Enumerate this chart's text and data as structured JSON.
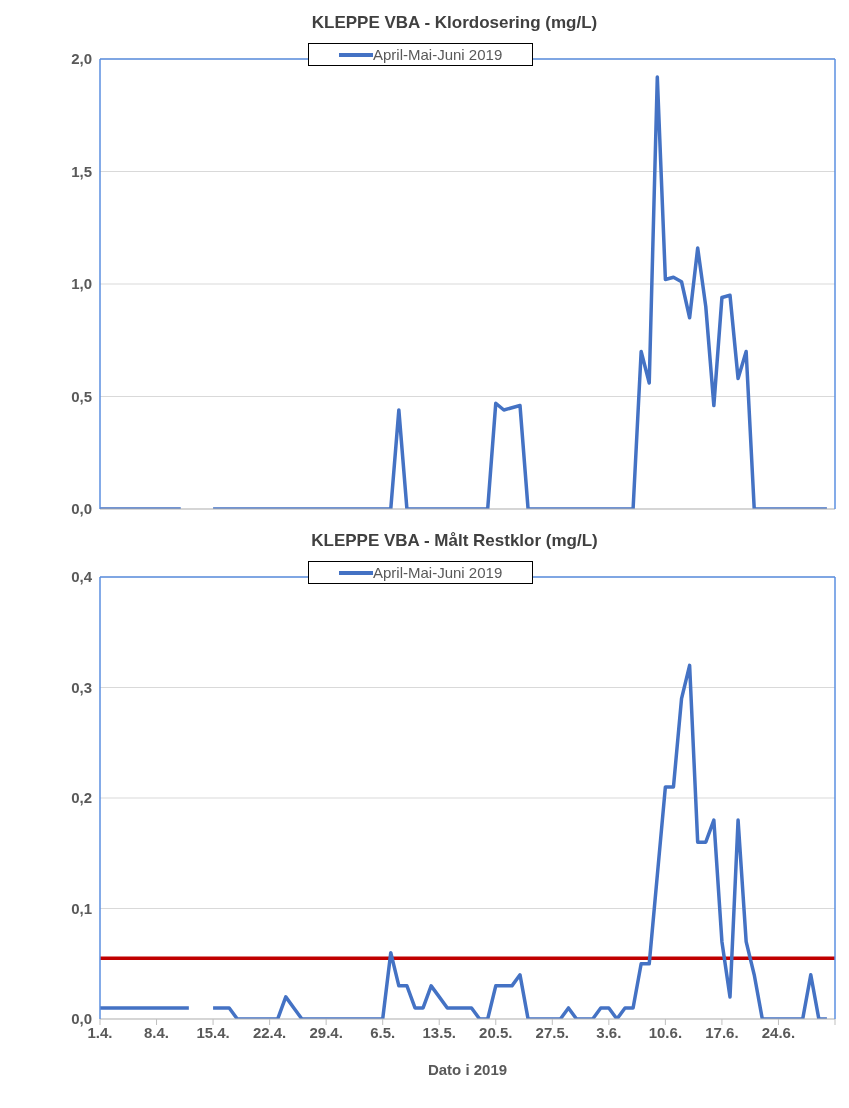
{
  "chart_data": [
    {
      "type": "line",
      "title": "KLEPPE VBA - Klordosering (mg/L)",
      "x": [
        "2019-04-01",
        "2019-04-02",
        "2019-04-03",
        "2019-04-04",
        "2019-04-05",
        "2019-04-06",
        "2019-04-07",
        "2019-04-08",
        "2019-04-09",
        "2019-04-10",
        "2019-04-11",
        "2019-04-12",
        "2019-04-13",
        "2019-04-14",
        "2019-04-15",
        "2019-04-16",
        "2019-04-17",
        "2019-04-18",
        "2019-04-19",
        "2019-04-20",
        "2019-04-21",
        "2019-04-22",
        "2019-04-23",
        "2019-04-24",
        "2019-04-25",
        "2019-04-26",
        "2019-04-27",
        "2019-04-28",
        "2019-04-29",
        "2019-04-30",
        "2019-05-01",
        "2019-05-02",
        "2019-05-03",
        "2019-05-04",
        "2019-05-05",
        "2019-05-06",
        "2019-05-07",
        "2019-05-08",
        "2019-05-09",
        "2019-05-10",
        "2019-05-11",
        "2019-05-12",
        "2019-05-13",
        "2019-05-14",
        "2019-05-15",
        "2019-05-16",
        "2019-05-17",
        "2019-05-18",
        "2019-05-19",
        "2019-05-20",
        "2019-05-21",
        "2019-05-22",
        "2019-05-23",
        "2019-05-24",
        "2019-05-25",
        "2019-05-26",
        "2019-05-27",
        "2019-05-28",
        "2019-05-29",
        "2019-05-30",
        "2019-05-31",
        "2019-06-01",
        "2019-06-02",
        "2019-06-03",
        "2019-06-04",
        "2019-06-05",
        "2019-06-06",
        "2019-06-07",
        "2019-06-08",
        "2019-06-09",
        "2019-06-10",
        "2019-06-11",
        "2019-06-12",
        "2019-06-13",
        "2019-06-14",
        "2019-06-15",
        "2019-06-16",
        "2019-06-17",
        "2019-06-18",
        "2019-06-19",
        "2019-06-20",
        "2019-06-21",
        "2019-06-22",
        "2019-06-23",
        "2019-06-24",
        "2019-06-25",
        "2019-06-26",
        "2019-06-27",
        "2019-06-28",
        "2019-06-29",
        "2019-06-30"
      ],
      "series": [
        {
          "name": "April-Mai-Juni 2019",
          "color": "#4472c4",
          "values": [
            0,
            0,
            0,
            0,
            0,
            0,
            0,
            0,
            0,
            0,
            0,
            null,
            null,
            null,
            0,
            0,
            0,
            0,
            0,
            0,
            0,
            0,
            0,
            0,
            0,
            0,
            0,
            0,
            0,
            0,
            0,
            0,
            0,
            0,
            0,
            0,
            0,
            0.44,
            0,
            0,
            0,
            0,
            0,
            0,
            0,
            0,
            0,
            0,
            0,
            0.47,
            0.44,
            0.45,
            0.46,
            0,
            0,
            0,
            0,
            0,
            0,
            0,
            0,
            0,
            0,
            0,
            0,
            0,
            0,
            0.7,
            0.56,
            1.92,
            1.02,
            1.03,
            1.01,
            0.85,
            1.16,
            0.9,
            0.46,
            0.94,
            0.95,
            0.58,
            0.7,
            0,
            0,
            0,
            0,
            0,
            0,
            0,
            0,
            0,
            0
          ]
        }
      ],
      "xlim": [
        "2019-04-01",
        "2019-07-01"
      ],
      "xticks": [
        {
          "value": "2019-04-01",
          "label": null
        },
        {
          "value": "2019-04-08",
          "label": null
        },
        {
          "value": "2019-04-15",
          "label": null
        },
        {
          "value": "2019-04-22",
          "label": null
        },
        {
          "value": "2019-04-29",
          "label": null
        },
        {
          "value": "2019-05-06",
          "label": null
        },
        {
          "value": "2019-05-13",
          "label": null
        },
        {
          "value": "2019-05-20",
          "label": null
        },
        {
          "value": "2019-05-27",
          "label": null
        },
        {
          "value": "2019-06-03",
          "label": null
        },
        {
          "value": "2019-06-10",
          "label": null
        },
        {
          "value": "2019-06-17",
          "label": null
        },
        {
          "value": "2019-06-24",
          "label": null
        },
        {
          "value": "2019-07-01",
          "label": null
        }
      ],
      "ylim": [
        0,
        2
      ],
      "yticks": [
        {
          "value": 0,
          "label": "0,0"
        },
        {
          "value": 0.5,
          "label": "0,5"
        },
        {
          "value": 1,
          "label": "1,0"
        },
        {
          "value": 1.5,
          "label": "1,5"
        },
        {
          "value": 2,
          "label": "2,0"
        }
      ],
      "tick_labels": "y",
      "grid": "y",
      "legend": "top",
      "marker": "none",
      "line_style": "solid"
    },
    {
      "type": "line",
      "title": "KLEPPE VBA - Målt Restklor (mg/L)",
      "xlabel": "Dato i 2019",
      "x": [
        "2019-04-01",
        "2019-04-02",
        "2019-04-03",
        "2019-04-04",
        "2019-04-05",
        "2019-04-06",
        "2019-04-07",
        "2019-04-08",
        "2019-04-09",
        "2019-04-10",
        "2019-04-11",
        "2019-04-12",
        "2019-04-13",
        "2019-04-14",
        "2019-04-15",
        "2019-04-16",
        "2019-04-17",
        "2019-04-18",
        "2019-04-19",
        "2019-04-20",
        "2019-04-21",
        "2019-04-22",
        "2019-04-23",
        "2019-04-24",
        "2019-04-25",
        "2019-04-26",
        "2019-04-27",
        "2019-04-28",
        "2019-04-29",
        "2019-04-30",
        "2019-05-01",
        "2019-05-02",
        "2019-05-03",
        "2019-05-04",
        "2019-05-05",
        "2019-05-06",
        "2019-05-07",
        "2019-05-08",
        "2019-05-09",
        "2019-05-10",
        "2019-05-11",
        "2019-05-12",
        "2019-05-13",
        "2019-05-14",
        "2019-05-15",
        "2019-05-16",
        "2019-05-17",
        "2019-05-18",
        "2019-05-19",
        "2019-05-20",
        "2019-05-21",
        "2019-05-22",
        "2019-05-23",
        "2019-05-24",
        "2019-05-25",
        "2019-05-26",
        "2019-05-27",
        "2019-05-28",
        "2019-05-29",
        "2019-05-30",
        "2019-05-31",
        "2019-06-01",
        "2019-06-02",
        "2019-06-03",
        "2019-06-04",
        "2019-06-05",
        "2019-06-06",
        "2019-06-07",
        "2019-06-08",
        "2019-06-09",
        "2019-06-10",
        "2019-06-11",
        "2019-06-12",
        "2019-06-13",
        "2019-06-14",
        "2019-06-15",
        "2019-06-16",
        "2019-06-17",
        "2019-06-18",
        "2019-06-19",
        "2019-06-20",
        "2019-06-21",
        "2019-06-22",
        "2019-06-23",
        "2019-06-24",
        "2019-06-25",
        "2019-06-26",
        "2019-06-27",
        "2019-06-28",
        "2019-06-29",
        "2019-06-30"
      ],
      "series": [
        {
          "name": "April-Mai-Juni 2019",
          "color": "#4472c4",
          "values": [
            0.01,
            0.01,
            0.01,
            0.01,
            0.01,
            0.01,
            0.01,
            0.01,
            0.01,
            0.01,
            0.01,
            0.01,
            null,
            null,
            0.01,
            0.01,
            0.01,
            0,
            0,
            0,
            0,
            0,
            0,
            0.02,
            0.01,
            0,
            0,
            0,
            0,
            0,
            0,
            0,
            0,
            0,
            0,
            0,
            0.06,
            0.03,
            0.03,
            0.01,
            0.01,
            0.03,
            0.02,
            0.01,
            0.01,
            0.01,
            0.01,
            0,
            0,
            0.03,
            0.03,
            0.03,
            0.04,
            0,
            0,
            0,
            0,
            0,
            0.01,
            0,
            0,
            0,
            0.01,
            0.01,
            0,
            0.01,
            0.01,
            0.05,
            0.05,
            0.13,
            0.21,
            0.21,
            0.29,
            0.32,
            0.16,
            0.16,
            0.18,
            0.07,
            0.02,
            0.18,
            0.07,
            0.04,
            0,
            0,
            0,
            0,
            0,
            0,
            0.04,
            0,
            0
          ]
        }
      ],
      "ref_lines": [
        {
          "axis": "y",
          "value": 0.055,
          "color": "#c00000"
        }
      ],
      "xlim": [
        "2019-04-01",
        "2019-07-01"
      ],
      "xticks": [
        {
          "value": "2019-04-01",
          "label": "1.4."
        },
        {
          "value": "2019-04-08",
          "label": "8.4."
        },
        {
          "value": "2019-04-15",
          "label": "15.4."
        },
        {
          "value": "2019-04-22",
          "label": "22.4."
        },
        {
          "value": "2019-04-29",
          "label": "29.4."
        },
        {
          "value": "2019-05-06",
          "label": "6.5."
        },
        {
          "value": "2019-05-13",
          "label": "13.5."
        },
        {
          "value": "2019-05-20",
          "label": "20.5."
        },
        {
          "value": "2019-05-27",
          "label": "27.5."
        },
        {
          "value": "2019-06-03",
          "label": "3.6."
        },
        {
          "value": "2019-06-10",
          "label": "10.6."
        },
        {
          "value": "2019-06-17",
          "label": "17.6."
        },
        {
          "value": "2019-06-24",
          "label": "24.6."
        },
        {
          "value": "2019-07-01",
          "label": null
        }
      ],
      "ylim": [
        0,
        0.4
      ],
      "yticks": [
        {
          "value": 0,
          "label": "0,0"
        },
        {
          "value": 0.1,
          "label": "0,1"
        },
        {
          "value": 0.2,
          "label": "0,2"
        },
        {
          "value": 0.3,
          "label": "0,3"
        },
        {
          "value": 0.4,
          "label": "0,4"
        }
      ],
      "grid": "y",
      "legend": "top",
      "marker": "none",
      "line_style": "solid"
    }
  ]
}
